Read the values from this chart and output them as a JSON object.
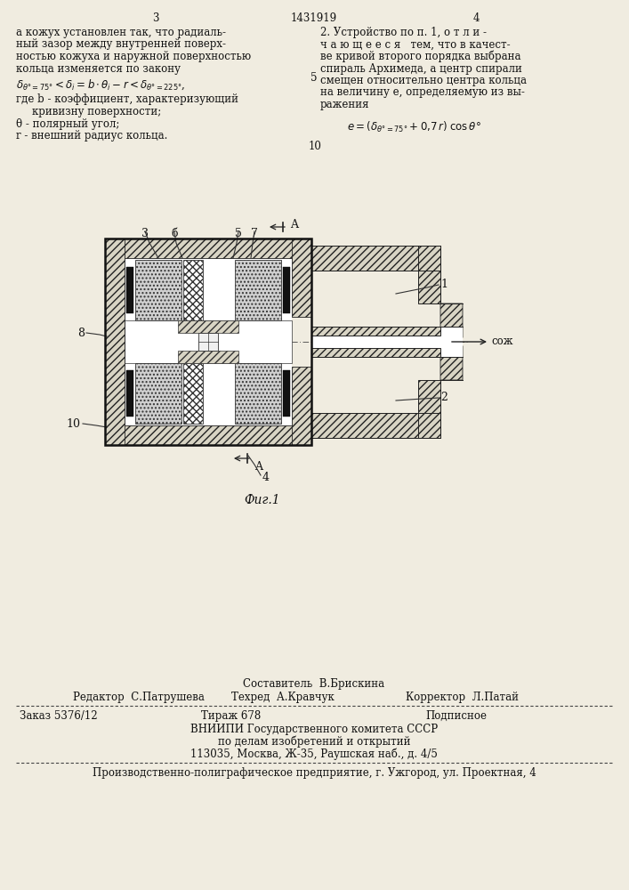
{
  "page_number_left": "3",
  "patent_number": "1431919",
  "page_number_right": "4",
  "bg_color": "#f0ece0",
  "text_color": "#111111",
  "fig_caption": "Фиг.1",
  "label_soj": "сож",
  "label_A": "A",
  "footer_composer": "Составитель  В.Брискина",
  "footer_editor": "Редактор  С.Патрушева",
  "footer_techred": "Техред  А.Кравчук",
  "footer_corrector": "Корректор  Л.Патай",
  "footer_order": "Заказ 5376/12",
  "footer_tirazh": "Тираж 678",
  "footer_podpisnoe": "Подписное",
  "footer_vnipi": "ВНИИПИ Государственного комитета СССР",
  "footer_po_delam": "по делам изобретений и открытий",
  "footer_address": "113035, Москва, Ж-35, Раушская наб., д. 4/5",
  "footer_factory": "Производственно-полиграфическое предприятие, г. Ужгород, ул. Проектная, 4"
}
